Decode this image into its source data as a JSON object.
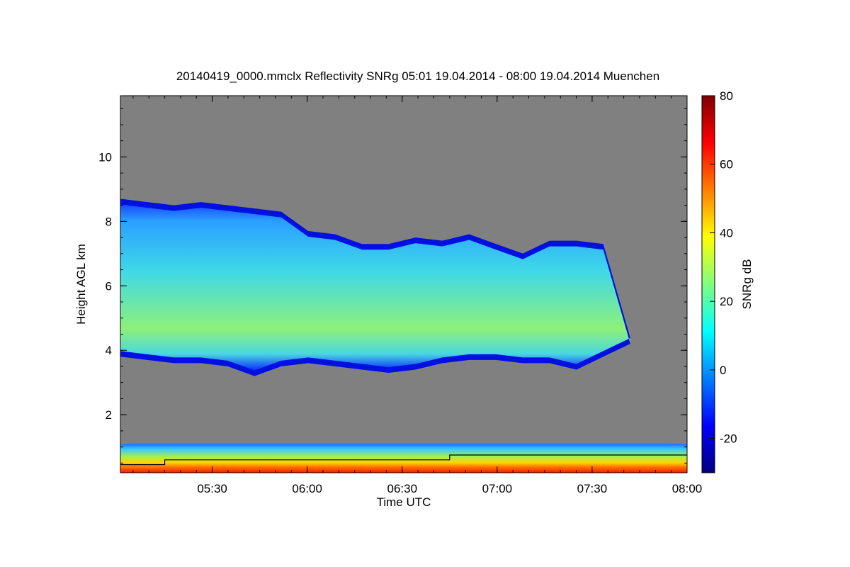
{
  "chart_data": {
    "type": "heatmap",
    "title": "20140419_0000.mmclx Reflectivity SNRg   05:01 19.04.2014 - 08:00 19.04.2014 Muenchen",
    "xlabel": "Time UTC",
    "ylabel": "Height AGL km",
    "colorbar_label": "SNRg dB",
    "x_range": [
      "05:01",
      "08:00"
    ],
    "y_range": [
      0.2,
      11.9
    ],
    "color_range": [
      -30,
      80
    ],
    "x_ticks": [
      "05:30",
      "06:00",
      "06:30",
      "07:00",
      "07:30",
      "08:00"
    ],
    "y_ticks": [
      "2",
      "4",
      "6",
      "8",
      "10"
    ],
    "colorbar_ticks": [
      "-20",
      "0",
      "20",
      "40",
      "60",
      "80"
    ],
    "background_color": "#808080",
    "colormap": [
      "#00007f",
      "#0000ff",
      "#007fff",
      "#00ffff",
      "#7fff7f",
      "#ffff00",
      "#ff7f00",
      "#ff0000",
      "#7f0000"
    ],
    "cloud_layer": {
      "top_km": [
        8.7,
        8.6,
        8.5,
        8.6,
        8.5,
        8.4,
        8.3,
        7.7,
        7.6,
        7.3,
        7.3,
        7.5,
        7.4,
        7.6,
        7.3,
        7.0,
        7.4,
        7.4,
        7.3,
        4.4
      ],
      "base_km": [
        3.8,
        3.7,
        3.6,
        3.6,
        3.5,
        3.2,
        3.5,
        3.6,
        3.5,
        3.4,
        3.3,
        3.4,
        3.6,
        3.7,
        3.7,
        3.6,
        3.6,
        3.4,
        3.8,
        4.2
      ]
    },
    "boundary_layer_top_km": 1.1,
    "boundary_line_km": [
      {
        "time": "05:01",
        "height": 0.45
      },
      {
        "time": "05:15",
        "height": 0.45
      },
      {
        "time": "05:15",
        "height": 0.6
      },
      {
        "time": "06:45",
        "height": 0.6
      },
      {
        "time": "06:45",
        "height": 0.75
      },
      {
        "time": "08:00",
        "height": 0.75
      }
    ]
  }
}
